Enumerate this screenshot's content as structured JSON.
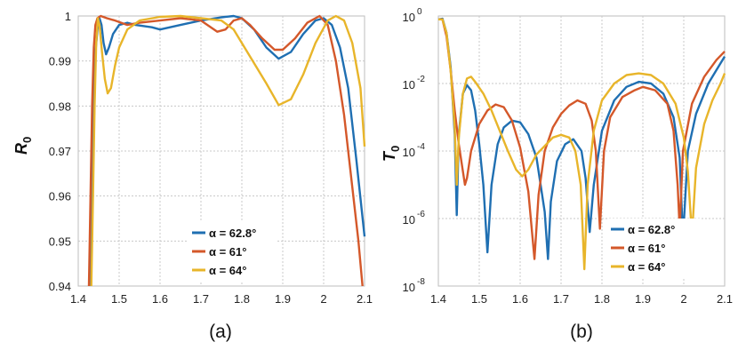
{
  "chart_data": [
    {
      "type": "line",
      "caption": "(a)",
      "ylabel_main": "R",
      "ylabel_sub": "0",
      "xlim": [
        1.4,
        2.1
      ],
      "ylim": [
        0.94,
        1.0
      ],
      "x_ticks": [
        "1.4",
        "1.5",
        "1.6",
        "1.7",
        "1.8",
        "1.9",
        "2",
        "2.1"
      ],
      "y_ticks": [
        "0.94",
        "0.95",
        "0.96",
        "0.97",
        "0.98",
        "0.99",
        "1"
      ],
      "grid": true,
      "legend_position": "lower-right",
      "series": [
        {
          "name": "α = 62.8°",
          "color": "#1f6fb2",
          "points": [
            [
              1.428,
              0.94
            ],
            [
              1.432,
              0.96
            ],
            [
              1.437,
              0.98
            ],
            [
              1.443,
              0.993
            ],
            [
              1.448,
              0.998
            ],
            [
              1.452,
              0.9995
            ],
            [
              1.457,
              0.998
            ],
            [
              1.462,
              0.994
            ],
            [
              1.468,
              0.9915
            ],
            [
              1.475,
              0.993
            ],
            [
              1.485,
              0.996
            ],
            [
              1.5,
              0.998
            ],
            [
              1.52,
              0.9985
            ],
            [
              1.54,
              0.998
            ],
            [
              1.58,
              0.9975
            ],
            [
              1.6,
              0.997
            ],
            [
              1.65,
              0.998
            ],
            [
              1.7,
              0.999
            ],
            [
              1.75,
              0.9997
            ],
            [
              1.78,
              1.0
            ],
            [
              1.8,
              0.9995
            ],
            [
              1.83,
              0.997
            ],
            [
              1.86,
              0.993
            ],
            [
              1.89,
              0.9905
            ],
            [
              1.92,
              0.992
            ],
            [
              1.95,
              0.996
            ],
            [
              1.98,
              0.999
            ],
            [
              2.0,
              0.9995
            ],
            [
              2.02,
              0.998
            ],
            [
              2.04,
              0.993
            ],
            [
              2.06,
              0.984
            ],
            [
              2.08,
              0.968
            ],
            [
              2.1,
              0.951
            ]
          ]
        },
        {
          "name": "α = 61°",
          "color": "#d4582a",
          "points": [
            [
              1.426,
              0.94
            ],
            [
              1.43,
              0.96
            ],
            [
              1.434,
              0.98
            ],
            [
              1.438,
              0.993
            ],
            [
              1.442,
              0.998
            ],
            [
              1.447,
              0.9995
            ],
            [
              1.455,
              1.0
            ],
            [
              1.47,
              0.9995
            ],
            [
              1.49,
              0.999
            ],
            [
              1.52,
              0.998
            ],
            [
              1.55,
              0.9985
            ],
            [
              1.6,
              0.999
            ],
            [
              1.65,
              0.9995
            ],
            [
              1.7,
              0.999
            ],
            [
              1.74,
              0.9965
            ],
            [
              1.76,
              0.997
            ],
            [
              1.78,
              0.999
            ],
            [
              1.8,
              0.9995
            ],
            [
              1.82,
              0.998
            ],
            [
              1.85,
              0.995
            ],
            [
              1.88,
              0.9925
            ],
            [
              1.9,
              0.9925
            ],
            [
              1.93,
              0.995
            ],
            [
              1.96,
              0.9985
            ],
            [
              1.99,
              1.0
            ],
            [
              2.01,
              0.998
            ],
            [
              2.03,
              0.99
            ],
            [
              2.05,
              0.978
            ],
            [
              2.07,
              0.962
            ],
            [
              2.085,
              0.95
            ],
            [
              2.095,
              0.94
            ]
          ]
        },
        {
          "name": "α = 64°",
          "color": "#e8b52a",
          "points": [
            [
              1.432,
              0.94
            ],
            [
              1.436,
              0.96
            ],
            [
              1.44,
              0.98
            ],
            [
              1.444,
              0.994
            ],
            [
              1.448,
              0.9995
            ],
            [
              1.452,
              0.998
            ],
            [
              1.458,
              0.992
            ],
            [
              1.465,
              0.986
            ],
            [
              1.472,
              0.9828
            ],
            [
              1.48,
              0.984
            ],
            [
              1.49,
              0.989
            ],
            [
              1.5,
              0.993
            ],
            [
              1.52,
              0.997
            ],
            [
              1.55,
              0.999
            ],
            [
              1.6,
              0.9998
            ],
            [
              1.65,
              1.0
            ],
            [
              1.7,
              0.9995
            ],
            [
              1.75,
              0.999
            ],
            [
              1.78,
              0.997
            ],
            [
              1.82,
              0.991
            ],
            [
              1.86,
              0.985
            ],
            [
              1.89,
              0.9802
            ],
            [
              1.92,
              0.9815
            ],
            [
              1.95,
              0.987
            ],
            [
              1.98,
              0.994
            ],
            [
              2.01,
              0.999
            ],
            [
              2.03,
              1.0
            ],
            [
              2.05,
              0.999
            ],
            [
              2.07,
              0.994
            ],
            [
              2.09,
              0.984
            ],
            [
              2.1,
              0.971
            ]
          ]
        }
      ],
      "legend_entries": [
        "α = 62.8°",
        "α = 61°",
        "α = 64°"
      ]
    },
    {
      "type": "line",
      "caption": "(b)",
      "ylabel_main": "T",
      "ylabel_sub": "0",
      "yscale": "log",
      "xlim": [
        1.4,
        2.1
      ],
      "ylim": [
        1e-08,
        1
      ],
      "x_ticks": [
        "1.4",
        "1.5",
        "1.6",
        "1.7",
        "1.8",
        "1.9",
        "2",
        "2.1"
      ],
      "y_ticks": [
        {
          "base": "10",
          "exp": "-8",
          "value": -8
        },
        {
          "base": "10",
          "exp": "-6",
          "value": -6
        },
        {
          "base": "10",
          "exp": "-4",
          "value": -4
        },
        {
          "base": "10",
          "exp": "-2",
          "value": -2
        },
        {
          "base": "10",
          "exp": "0",
          "value": 0
        }
      ],
      "grid": true,
      "legend_position": "lower-right",
      "series": [
        {
          "name": "α = 62.8°",
          "color": "#1f6fb2",
          "points_log10": [
            [
              1.4,
              -0.1
            ],
            [
              1.41,
              -0.08
            ],
            [
              1.42,
              -0.5
            ],
            [
              1.43,
              -1.5
            ],
            [
              1.44,
              -3.5
            ],
            [
              1.445,
              -5.9
            ],
            [
              1.45,
              -3.5
            ],
            [
              1.46,
              -2.3
            ],
            [
              1.47,
              -2.05
            ],
            [
              1.48,
              -2.2
            ],
            [
              1.49,
              -2.8
            ],
            [
              1.5,
              -3.8
            ],
            [
              1.51,
              -5.0
            ],
            [
              1.52,
              -7.0
            ],
            [
              1.53,
              -5.0
            ],
            [
              1.545,
              -3.8
            ],
            [
              1.56,
              -3.3
            ],
            [
              1.58,
              -3.1
            ],
            [
              1.6,
              -3.15
            ],
            [
              1.62,
              -3.5
            ],
            [
              1.64,
              -4.2
            ],
            [
              1.66,
              -5.8
            ],
            [
              1.668,
              -7.2
            ],
            [
              1.675,
              -5.5
            ],
            [
              1.69,
              -4.3
            ],
            [
              1.71,
              -3.8
            ],
            [
              1.73,
              -3.65
            ],
            [
              1.75,
              -4.0
            ],
            [
              1.76,
              -4.8
            ],
            [
              1.77,
              -6.4
            ],
            [
              1.78,
              -5.0
            ],
            [
              1.8,
              -3.4
            ],
            [
              1.83,
              -2.5
            ],
            [
              1.86,
              -2.1
            ],
            [
              1.89,
              -1.95
            ],
            [
              1.92,
              -2.0
            ],
            [
              1.95,
              -2.3
            ],
            [
              1.975,
              -3.0
            ],
            [
              1.99,
              -4.2
            ],
            [
              1.998,
              -6.6
            ],
            [
              2.01,
              -4.0
            ],
            [
              2.03,
              -2.9
            ],
            [
              2.06,
              -2.0
            ],
            [
              2.08,
              -1.6
            ],
            [
              2.1,
              -1.2
            ]
          ]
        },
        {
          "name": "α = 61°",
          "color": "#d4582a",
          "points_log10": [
            [
              1.4,
              -0.1
            ],
            [
              1.41,
              -0.1
            ],
            [
              1.42,
              -0.6
            ],
            [
              1.43,
              -1.6
            ],
            [
              1.44,
              -2.8
            ],
            [
              1.45,
              -3.8
            ],
            [
              1.46,
              -4.6
            ],
            [
              1.465,
              -5.0
            ],
            [
              1.47,
              -4.8
            ],
            [
              1.48,
              -4.0
            ],
            [
              1.5,
              -3.2
            ],
            [
              1.52,
              -2.8
            ],
            [
              1.54,
              -2.62
            ],
            [
              1.56,
              -2.7
            ],
            [
              1.58,
              -3.1
            ],
            [
              1.6,
              -3.9
            ],
            [
              1.62,
              -5.2
            ],
            [
              1.635,
              -7.2
            ],
            [
              1.645,
              -5.3
            ],
            [
              1.66,
              -4.0
            ],
            [
              1.68,
              -3.3
            ],
            [
              1.7,
              -2.9
            ],
            [
              1.72,
              -2.65
            ],
            [
              1.74,
              -2.5
            ],
            [
              1.76,
              -2.6
            ],
            [
              1.775,
              -3.1
            ],
            [
              1.785,
              -4.0
            ],
            [
              1.795,
              -6.3
            ],
            [
              1.805,
              -4.0
            ],
            [
              1.82,
              -3.0
            ],
            [
              1.85,
              -2.4
            ],
            [
              1.88,
              -2.2
            ],
            [
              1.9,
              -2.1
            ],
            [
              1.93,
              -2.2
            ],
            [
              1.96,
              -2.6
            ],
            [
              1.975,
              -3.4
            ],
            [
              1.985,
              -5.0
            ],
            [
              1.99,
              -6.3
            ],
            [
              1.998,
              -4.0
            ],
            [
              2.02,
              -2.6
            ],
            [
              2.05,
              -1.8
            ],
            [
              2.08,
              -1.3
            ],
            [
              2.1,
              -1.05
            ]
          ]
        },
        {
          "name": "α = 64°",
          "color": "#e8b52a",
          "points_log10": [
            [
              1.4,
              -0.1
            ],
            [
              1.41,
              -0.1
            ],
            [
              1.42,
              -0.5
            ],
            [
              1.43,
              -1.6
            ],
            [
              1.44,
              -3.3
            ],
            [
              1.445,
              -5.0
            ],
            [
              1.45,
              -3.6
            ],
            [
              1.46,
              -2.3
            ],
            [
              1.47,
              -1.85
            ],
            [
              1.48,
              -1.8
            ],
            [
              1.49,
              -1.95
            ],
            [
              1.51,
              -2.3
            ],
            [
              1.53,
              -2.8
            ],
            [
              1.55,
              -3.4
            ],
            [
              1.57,
              -4.0
            ],
            [
              1.59,
              -4.55
            ],
            [
              1.605,
              -4.75
            ],
            [
              1.62,
              -4.55
            ],
            [
              1.64,
              -4.1
            ],
            [
              1.66,
              -3.85
            ],
            [
              1.68,
              -3.6
            ],
            [
              1.7,
              -3.52
            ],
            [
              1.72,
              -3.6
            ],
            [
              1.735,
              -4.0
            ],
            [
              1.748,
              -5.0
            ],
            [
              1.757,
              -7.5
            ],
            [
              1.765,
              -5.0
            ],
            [
              1.78,
              -3.4
            ],
            [
              1.8,
              -2.5
            ],
            [
              1.83,
              -2.0
            ],
            [
              1.86,
              -1.75
            ],
            [
              1.89,
              -1.7
            ],
            [
              1.92,
              -1.75
            ],
            [
              1.95,
              -2.0
            ],
            [
              1.98,
              -2.6
            ],
            [
              2.0,
              -3.6
            ],
            [
              2.01,
              -4.6
            ],
            [
              2.02,
              -6.5
            ],
            [
              2.03,
              -4.5
            ],
            [
              2.05,
              -3.2
            ],
            [
              2.07,
              -2.5
            ],
            [
              2.09,
              -2.0
            ],
            [
              2.1,
              -1.7
            ]
          ]
        }
      ],
      "legend_entries": [
        "α = 62.8°",
        "α = 61°",
        "α = 64°"
      ]
    }
  ]
}
